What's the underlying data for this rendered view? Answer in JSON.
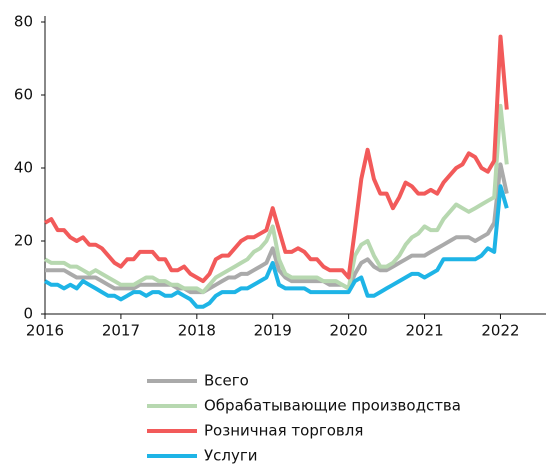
{
  "chart_data": {
    "type": "line",
    "x": [
      2016.0,
      2016.083,
      2016.167,
      2016.25,
      2016.333,
      2016.417,
      2016.5,
      2016.583,
      2016.667,
      2016.75,
      2016.833,
      2016.917,
      2017.0,
      2017.083,
      2017.167,
      2017.25,
      2017.333,
      2017.417,
      2017.5,
      2017.583,
      2017.667,
      2017.75,
      2017.833,
      2017.917,
      2018.0,
      2018.083,
      2018.167,
      2018.25,
      2018.333,
      2018.417,
      2018.5,
      2018.583,
      2018.667,
      2018.75,
      2018.833,
      2018.917,
      2019.0,
      2019.083,
      2019.167,
      2019.25,
      2019.333,
      2019.417,
      2019.5,
      2019.583,
      2019.667,
      2019.75,
      2019.833,
      2019.917,
      2020.0,
      2020.083,
      2020.167,
      2020.25,
      2020.333,
      2020.417,
      2020.5,
      2020.583,
      2020.667,
      2020.75,
      2020.833,
      2020.917,
      2021.0,
      2021.083,
      2021.167,
      2021.25,
      2021.333,
      2021.417,
      2021.5,
      2021.583,
      2021.667,
      2021.75,
      2021.833,
      2021.917,
      2022.0,
      2022.083
    ],
    "series": [
      {
        "name": "Всего",
        "color": "#aaaaaa",
        "values": [
          12,
          12,
          12,
          12,
          11,
          10,
          10,
          10,
          10,
          9,
          8,
          7,
          7,
          7,
          7,
          8,
          8,
          8,
          8,
          8,
          8,
          7,
          7,
          6,
          6,
          6,
          7,
          8,
          9,
          10,
          10,
          11,
          11,
          12,
          13,
          14,
          18,
          12,
          10,
          9,
          9,
          9,
          9,
          9,
          9,
          8,
          8,
          8,
          7,
          11,
          14,
          15,
          13,
          12,
          12,
          13,
          14,
          15,
          16,
          16,
          16,
          17,
          18,
          19,
          20,
          21,
          21,
          21,
          20,
          21,
          22,
          25,
          41,
          33
        ]
      },
      {
        "name": "Обрабатывающие производства",
        "color": "#b7d8b0",
        "values": [
          15,
          14,
          14,
          14,
          13,
          13,
          12,
          11,
          12,
          11,
          10,
          9,
          8,
          8,
          8,
          9,
          10,
          10,
          9,
          9,
          8,
          8,
          7,
          7,
          7,
          6,
          8,
          10,
          11,
          12,
          13,
          14,
          15,
          17,
          18,
          20,
          24,
          15,
          11,
          10,
          10,
          10,
          10,
          10,
          9,
          9,
          9,
          8,
          7,
          16,
          19,
          20,
          16,
          13,
          13,
          14,
          16,
          19,
          21,
          22,
          24,
          23,
          23,
          26,
          28,
          30,
          29,
          28,
          29,
          30,
          31,
          32,
          57,
          41
        ]
      },
      {
        "name": "Розничная торговля",
        "color": "#f25a5a",
        "values": [
          25,
          26,
          23,
          23,
          21,
          20,
          21,
          19,
          19,
          18,
          16,
          14,
          13,
          15,
          15,
          17,
          17,
          17,
          15,
          15,
          12,
          12,
          13,
          11,
          10,
          9,
          11,
          15,
          16,
          16,
          18,
          20,
          21,
          21,
          22,
          23,
          29,
          23,
          17,
          17,
          18,
          17,
          15,
          15,
          13,
          12,
          12,
          12,
          10,
          23,
          37,
          45,
          37,
          33,
          33,
          29,
          32,
          36,
          35,
          33,
          33,
          34,
          33,
          36,
          38,
          40,
          41,
          44,
          43,
          40,
          39,
          42,
          76,
          56
        ]
      },
      {
        "name": "Услуги",
        "color": "#1eb4e6",
        "values": [
          9,
          8,
          8,
          7,
          8,
          7,
          9,
          8,
          7,
          6,
          5,
          5,
          4,
          5,
          6,
          6,
          5,
          6,
          6,
          5,
          5,
          6,
          5,
          4,
          2,
          2,
          3,
          5,
          6,
          6,
          6,
          7,
          7,
          8,
          9,
          10,
          14,
          8,
          7,
          7,
          7,
          7,
          6,
          6,
          6,
          6,
          6,
          6,
          6,
          9,
          10,
          5,
          5,
          6,
          7,
          8,
          9,
          10,
          11,
          11,
          10,
          11,
          12,
          15,
          15,
          15,
          15,
          15,
          15,
          16,
          18,
          17,
          35,
          29
        ]
      }
    ],
    "xlim": [
      2016,
      2022.6
    ],
    "xticks": [
      2016,
      2017,
      2018,
      2019,
      2020,
      2021,
      2022
    ],
    "ylim": [
      0,
      80
    ],
    "yticks": [
      0,
      20,
      40,
      60,
      80
    ]
  }
}
